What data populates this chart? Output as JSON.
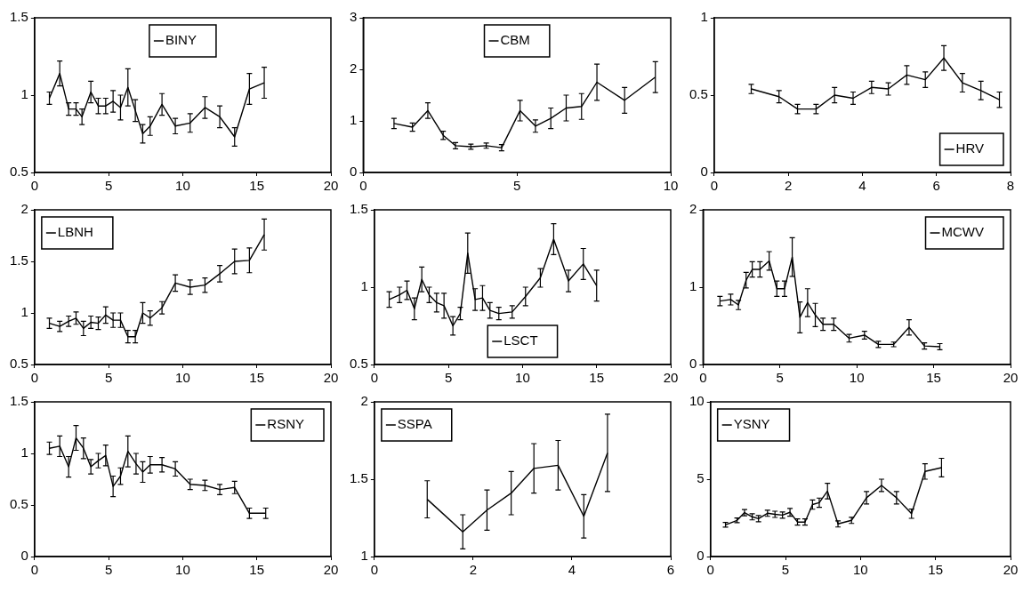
{
  "chart_data": [
    {
      "type": "line",
      "x": [
        1,
        1.7,
        2.3,
        2.8,
        3.2,
        3.8,
        4.3,
        4.8,
        5.3,
        5.8,
        6.3,
        6.8,
        7.3,
        7.8,
        8.6,
        9.5,
        10.5,
        11.5,
        12.5,
        13.5,
        14.5,
        15.5
      ],
      "series": [
        {
          "name": "BINY",
          "color": "#000000",
          "values": [
            0.98,
            1.14,
            0.91,
            0.91,
            0.86,
            1.02,
            0.93,
            0.93,
            0.96,
            0.92,
            1.05,
            0.9,
            0.75,
            0.8,
            0.94,
            0.8,
            0.82,
            0.92,
            0.86,
            0.73,
            1.04,
            1.08
          ],
          "errors": [
            0.04,
            0.08,
            0.04,
            0.04,
            0.05,
            0.07,
            0.05,
            0.05,
            0.07,
            0.08,
            0.12,
            0.07,
            0.06,
            0.06,
            0.07,
            0.05,
            0.06,
            0.07,
            0.07,
            0.06,
            0.1,
            0.1
          ]
        }
      ],
      "xlim": [
        0,
        20
      ],
      "xticks": [
        0,
        5,
        10,
        15,
        20
      ],
      "ylim": [
        0.5,
        1.5
      ],
      "yticks": [
        0.5,
        1,
        1.5
      ],
      "legend": "top"
    },
    {
      "type": "line",
      "x": [
        1,
        1.6,
        2.1,
        2.6,
        3,
        3.5,
        4,
        4.5,
        5.1,
        5.6,
        6.1,
        6.6,
        7.1,
        7.6,
        8.5,
        9.5
      ],
      "series": [
        {
          "name": "CBM",
          "color": "#000000",
          "values": [
            0.95,
            0.88,
            1.2,
            0.72,
            0.52,
            0.5,
            0.52,
            0.48,
            1.2,
            0.9,
            1.05,
            1.25,
            1.28,
            1.75,
            1.4,
            1.85
          ],
          "errors": [
            0.1,
            0.08,
            0.15,
            0.08,
            0.06,
            0.05,
            0.05,
            0.06,
            0.2,
            0.12,
            0.2,
            0.25,
            0.25,
            0.35,
            0.25,
            0.3
          ]
        }
      ],
      "xlim": [
        0,
        10
      ],
      "xticks": [
        0,
        5,
        10
      ],
      "ylim": [
        0,
        3
      ],
      "yticks": [
        0,
        1,
        2,
        3
      ],
      "legend": "top"
    },
    {
      "type": "line",
      "x": [
        1,
        1.75,
        2.25,
        2.75,
        3.25,
        3.75,
        4.25,
        4.7,
        5.2,
        5.7,
        6.2,
        6.7,
        7.2,
        7.7
      ],
      "series": [
        {
          "name": "HRV",
          "color": "#000000",
          "values": [
            0.54,
            0.49,
            0.41,
            0.41,
            0.5,
            0.48,
            0.55,
            0.54,
            0.63,
            0.6,
            0.74,
            0.58,
            0.53,
            0.47
          ],
          "errors": [
            0.03,
            0.04,
            0.03,
            0.03,
            0.05,
            0.04,
            0.04,
            0.04,
            0.06,
            0.05,
            0.08,
            0.06,
            0.06,
            0.05
          ]
        }
      ],
      "xlim": [
        0,
        8
      ],
      "xticks": [
        0,
        2,
        4,
        6,
        8
      ],
      "ylim": [
        0,
        1
      ],
      "yticks": [
        0,
        0.5,
        1
      ],
      "legend": "bottom right"
    },
    {
      "type": "line",
      "x": [
        1,
        1.7,
        2.3,
        2.8,
        3.3,
        3.8,
        4.3,
        4.8,
        5.3,
        5.8,
        6.3,
        6.8,
        7.3,
        7.8,
        8.6,
        9.5,
        10.5,
        11.5,
        12.5,
        13.5,
        14.5,
        15.5
      ],
      "series": [
        {
          "name": "LBNH",
          "color": "#000000",
          "values": [
            0.9,
            0.87,
            0.92,
            0.95,
            0.85,
            0.91,
            0.9,
            0.98,
            0.93,
            0.93,
            0.77,
            0.77,
            1,
            0.95,
            1.05,
            1.29,
            1.25,
            1.27,
            1.38,
            1.5,
            1.51,
            1.76
          ],
          "errors": [
            0.05,
            0.05,
            0.05,
            0.06,
            0.07,
            0.06,
            0.06,
            0.08,
            0.07,
            0.07,
            0.06,
            0.06,
            0.1,
            0.07,
            0.06,
            0.08,
            0.07,
            0.07,
            0.08,
            0.12,
            0.12,
            0.15
          ]
        }
      ],
      "xlim": [
        0,
        20
      ],
      "xticks": [
        0,
        5,
        10,
        15,
        20
      ],
      "ylim": [
        0.5,
        2
      ],
      "yticks": [
        0.5,
        1,
        1.5,
        2
      ],
      "legend": "top left"
    },
    {
      "type": "line",
      "x": [
        1,
        1.7,
        2.2,
        2.7,
        3.2,
        3.7,
        4.2,
        4.7,
        5.3,
        5.8,
        6.3,
        6.8,
        7.3,
        7.8,
        8.4,
        9.3,
        10.2,
        11.2,
        12.1,
        13.1,
        14.1,
        15
      ],
      "series": [
        {
          "name": "LSCT",
          "color": "#000000",
          "values": [
            0.92,
            0.95,
            0.98,
            0.86,
            1.05,
            0.95,
            0.9,
            0.88,
            0.75,
            0.83,
            1.22,
            0.92,
            0.93,
            0.85,
            0.83,
            0.84,
            0.94,
            1.06,
            1.31,
            1.04,
            1.15,
            1.01
          ],
          "errors": [
            0.05,
            0.05,
            0.06,
            0.07,
            0.08,
            0.05,
            0.06,
            0.08,
            0.06,
            0.04,
            0.13,
            0.07,
            0.08,
            0.05,
            0.04,
            0.04,
            0.06,
            0.06,
            0.1,
            0.07,
            0.1,
            0.1
          ]
        }
      ],
      "xlim": [
        0,
        20
      ],
      "xticks": [
        0,
        5,
        10,
        15,
        20
      ],
      "ylim": [
        0.5,
        1.5
      ],
      "yticks": [
        0.5,
        1,
        1.5
      ],
      "legend": "bottom"
    },
    {
      "type": "line",
      "x": [
        1.1,
        1.8,
        2.3,
        2.8,
        3.2,
        3.7,
        4.3,
        4.8,
        5.3,
        5.8,
        6.3,
        6.8,
        7.3,
        7.8,
        8.5,
        9.5,
        10.5,
        11.4,
        12.4,
        13.4,
        14.4,
        15.4
      ],
      "series": [
        {
          "name": "MCWV",
          "color": "#000000",
          "values": [
            0.82,
            0.84,
            0.77,
            1.09,
            1.23,
            1.23,
            1.34,
            0.98,
            0.98,
            1.39,
            0.61,
            0.8,
            0.64,
            0.52,
            0.52,
            0.34,
            0.38,
            0.26,
            0.26,
            0.48,
            0.24,
            0.23
          ],
          "errors": [
            0.06,
            0.07,
            0.06,
            0.1,
            0.1,
            0.1,
            0.12,
            0.1,
            0.1,
            0.25,
            0.2,
            0.18,
            0.15,
            0.08,
            0.08,
            0.05,
            0.05,
            0.04,
            0.03,
            0.1,
            0.04,
            0.04
          ]
        }
      ],
      "xlim": [
        0,
        20
      ],
      "xticks": [
        0,
        5,
        10,
        15,
        20
      ],
      "ylim": [
        0,
        2
      ],
      "yticks": [
        0,
        1,
        2
      ],
      "legend": "top right"
    },
    {
      "type": "line",
      "x": [
        1,
        1.7,
        2.3,
        2.8,
        3.3,
        3.8,
        4.3,
        4.8,
        5.3,
        5.8,
        6.3,
        6.85,
        7.3,
        7.8,
        8.6,
        9.5,
        10.5,
        11.5,
        12.5,
        13.5,
        14.5,
        15.6
      ],
      "series": [
        {
          "name": "RSNY",
          "color": "#000000",
          "values": [
            1.05,
            1.07,
            0.87,
            1.15,
            1.05,
            0.87,
            0.93,
            0.98,
            0.68,
            0.78,
            1.02,
            0.9,
            0.82,
            0.89,
            0.89,
            0.85,
            0.7,
            0.69,
            0.65,
            0.67,
            0.42,
            0.42
          ],
          "errors": [
            0.06,
            0.1,
            0.1,
            0.12,
            0.1,
            0.07,
            0.07,
            0.1,
            0.1,
            0.08,
            0.15,
            0.1,
            0.1,
            0.08,
            0.07,
            0.07,
            0.05,
            0.05,
            0.05,
            0.06,
            0.05,
            0.05
          ]
        }
      ],
      "xlim": [
        0,
        20
      ],
      "xticks": [
        0,
        5,
        10,
        15,
        20
      ],
      "ylim": [
        0,
        1.5
      ],
      "yticks": [
        0,
        0.5,
        1,
        1.5
      ],
      "legend": "top right"
    },
    {
      "type": "line",
      "x": [
        1.07,
        1.79,
        2.28,
        2.77,
        3.23,
        3.72,
        4.24,
        4.72
      ],
      "series": [
        {
          "name": "SSPA",
          "color": "#000000",
          "values": [
            1.37,
            1.16,
            1.3,
            1.41,
            1.57,
            1.59,
            1.26,
            1.67
          ],
          "errors": [
            0.12,
            0.11,
            0.13,
            0.14,
            0.16,
            0.16,
            0.14,
            0.25
          ]
        }
      ],
      "xlim": [
        0,
        6
      ],
      "xticks": [
        0,
        2,
        4,
        6
      ],
      "ylim": [
        1,
        2
      ],
      "yticks": [
        1,
        1.5,
        2
      ],
      "legend": "top left"
    },
    {
      "type": "line",
      "x": [
        1,
        1.77,
        2.27,
        2.78,
        3.2,
        3.8,
        4.3,
        4.8,
        5.3,
        5.8,
        6.3,
        6.8,
        7.25,
        7.8,
        8.5,
        9.4,
        10.4,
        11.4,
        12.4,
        13.4,
        14.3,
        15.4
      ],
      "series": [
        {
          "name": "YSNY",
          "color": "#000000",
          "values": [
            2.05,
            2.34,
            2.84,
            2.57,
            2.45,
            2.8,
            2.73,
            2.68,
            2.86,
            2.23,
            2.23,
            3.36,
            3.48,
            4.23,
            2.11,
            2.34,
            3.8,
            4.6,
            3.8,
            2.77,
            5.5,
            5.75
          ],
          "errors": [
            0.15,
            0.15,
            0.2,
            0.2,
            0.2,
            0.2,
            0.2,
            0.2,
            0.25,
            0.2,
            0.2,
            0.3,
            0.3,
            0.5,
            0.2,
            0.2,
            0.4,
            0.4,
            0.4,
            0.3,
            0.5,
            0.6
          ]
        }
      ],
      "xlim": [
        0,
        20
      ],
      "xticks": [
        0,
        5,
        10,
        15,
        20
      ],
      "ylim": [
        0,
        10
      ],
      "yticks": [
        0,
        5,
        10
      ],
      "legend": "top left"
    }
  ]
}
